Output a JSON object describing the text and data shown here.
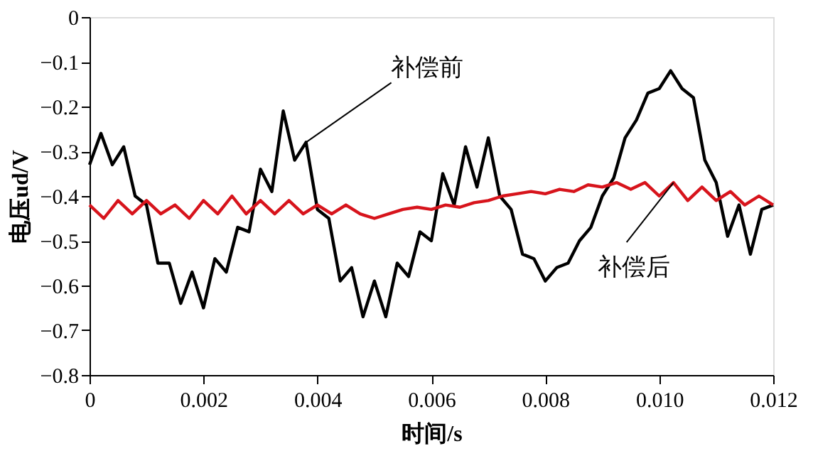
{
  "chart_data": {
    "type": "line",
    "xlabel": "时间/s",
    "ylabel": "电压ud/V",
    "xlim": [
      0,
      0.012
    ],
    "xticks": [
      0,
      0.002,
      0.004,
      0.006,
      0.008,
      {
        "value": 0.01,
        "label": "0.010"
      },
      0.012
    ],
    "ylim": [
      -0.8,
      0
    ],
    "yticks": [
      -0.8,
      -0.7,
      -0.6,
      -0.5,
      -0.4,
      -0.3,
      -0.2,
      -0.1,
      0
    ],
    "grid": false,
    "legend": false,
    "marker": "none",
    "line_style": "solid",
    "series": [
      {
        "name": "补偿前",
        "color": "#000000",
        "x": [
          0,
          0.0002,
          0.0004,
          0.0006,
          0.0008,
          0.001,
          0.0012,
          0.0014,
          0.0016,
          0.0018,
          0.002,
          0.0022,
          0.0024,
          0.0026,
          0.0028,
          0.003,
          0.0032,
          0.0034,
          0.0036,
          0.0038,
          0.004,
          0.0042,
          0.0044,
          0.0046,
          0.0048,
          0.005,
          0.0052,
          0.0054,
          0.0056,
          0.0058,
          0.006,
          0.0062,
          0.0064,
          0.0066,
          0.0068,
          0.007,
          0.0072,
          0.0074,
          0.0076,
          0.0078,
          0.008,
          0.0082,
          0.0084,
          0.0086,
          0.0088,
          0.009,
          0.0092,
          0.0094,
          0.0096,
          0.0098,
          0.01,
          0.0102,
          0.0104,
          0.0106,
          0.0108,
          0.011,
          0.0112,
          0.0114,
          0.0116,
          0.0118,
          0.012
        ],
        "values": [
          -0.33,
          -0.26,
          -0.33,
          -0.29,
          -0.4,
          -0.42,
          -0.55,
          -0.55,
          -0.64,
          -0.57,
          -0.65,
          -0.54,
          -0.57,
          -0.47,
          -0.48,
          -0.34,
          -0.39,
          -0.21,
          -0.32,
          -0.28,
          -0.43,
          -0.45,
          -0.59,
          -0.56,
          -0.67,
          -0.59,
          -0.67,
          -0.55,
          -0.58,
          -0.48,
          -0.5,
          -0.35,
          -0.42,
          -0.29,
          -0.38,
          -0.27,
          -0.4,
          -0.43,
          -0.53,
          -0.54,
          -0.59,
          -0.56,
          -0.55,
          -0.5,
          -0.47,
          -0.4,
          -0.36,
          -0.27,
          -0.23,
          -0.17,
          -0.16,
          -0.12,
          -0.16,
          -0.18,
          -0.32,
          -0.37,
          -0.49,
          -0.42,
          -0.53,
          -0.43,
          -0.42
        ]
      },
      {
        "name": "补偿后",
        "color": "#d7141c",
        "x": [
          0,
          0.00025,
          0.0005,
          0.00075,
          0.001,
          0.00125,
          0.0015,
          0.00175,
          0.002,
          0.00225,
          0.0025,
          0.00275,
          0.003,
          0.00325,
          0.0035,
          0.00375,
          0.004,
          0.00425,
          0.0045,
          0.00475,
          0.005,
          0.00525,
          0.0055,
          0.00575,
          0.006,
          0.00625,
          0.0065,
          0.00675,
          0.007,
          0.00725,
          0.0075,
          0.00775,
          0.008,
          0.00825,
          0.0085,
          0.00875,
          0.009,
          0.00925,
          0.0095,
          0.00975,
          0.01,
          0.01025,
          0.0105,
          0.01075,
          0.011,
          0.01125,
          0.0115,
          0.01175,
          0.012
        ],
        "values": [
          -0.42,
          -0.45,
          -0.41,
          -0.44,
          -0.41,
          -0.44,
          -0.42,
          -0.45,
          -0.41,
          -0.44,
          -0.4,
          -0.44,
          -0.41,
          -0.44,
          -0.41,
          -0.44,
          -0.42,
          -0.44,
          -0.42,
          -0.44,
          -0.45,
          -0.44,
          -0.43,
          -0.425,
          -0.43,
          -0.42,
          -0.425,
          -0.415,
          -0.41,
          -0.4,
          -0.395,
          -0.39,
          -0.395,
          -0.385,
          -0.39,
          -0.375,
          -0.38,
          -0.37,
          -0.385,
          -0.37,
          -0.4,
          -0.37,
          -0.41,
          -0.38,
          -0.41,
          -0.39,
          -0.42,
          -0.4,
          -0.42
        ]
      }
    ]
  }
}
